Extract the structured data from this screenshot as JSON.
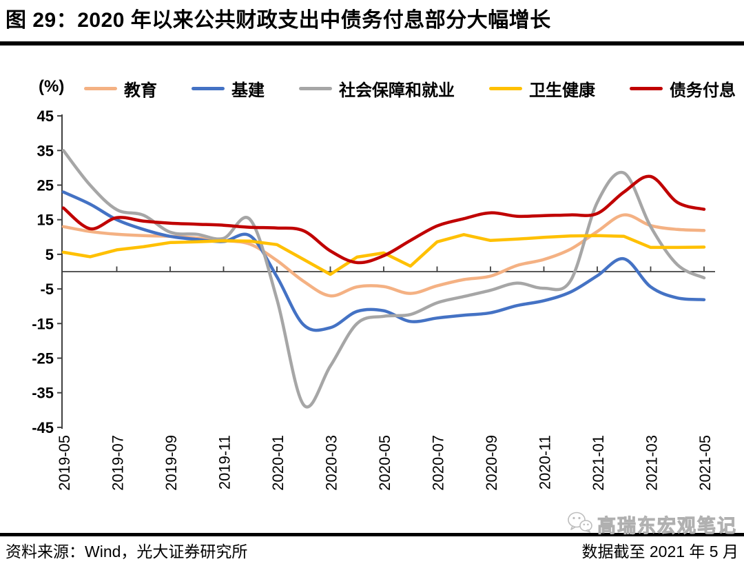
{
  "figure": {
    "title": "图 29：2020 年以来公共财政支出中债务付息部分大幅增长",
    "unit_label": "(%)"
  },
  "footer": {
    "source": "资料来源：Wind，光大证券研究所",
    "cutoff": "数据截至 2021 年 5 月",
    "watermark": "高瑞东宏观笔记"
  },
  "colors": {
    "axis": "#3f3f3f",
    "tick_text": "#000000",
    "title_rule": "#000000",
    "watermark_gray": "#c9c9c9"
  },
  "chart_data": {
    "type": "line",
    "title": "图 29：2020 年以来公共财政支出中债务付息部分大幅增长",
    "ylabel": "(%)",
    "ylim": [
      -45,
      45
    ],
    "ytick_step": 10,
    "yticks": [
      45,
      35,
      25,
      15,
      5,
      -5,
      -15,
      -25,
      -35,
      -45
    ],
    "grid": false,
    "legend_position": "top",
    "x": [
      "2019-05",
      "2019-06",
      "2019-07",
      "2019-08",
      "2019-09",
      "2019-10",
      "2019-11",
      "2019-12",
      "2020-01",
      "2020-02",
      "2020-03",
      "2020-04",
      "2020-05",
      "2020-06",
      "2020-07",
      "2020-08",
      "2020-09",
      "2020-10",
      "2020-11",
      "2020-12",
      "2021-01",
      "2021-02",
      "2021-03",
      "2021-04",
      "2021-05"
    ],
    "x_tick_labels": [
      "2019-05",
      "2019-07",
      "2019-09",
      "2019-11",
      "2020-01",
      "2020-03",
      "2020-05",
      "2020-07",
      "2020-09",
      "2020-11",
      "2021-01",
      "2021-03",
      "2021-05"
    ],
    "series": [
      {
        "name": "教育",
        "color": "#F4B183",
        "smooth": true,
        "values": [
          13.0,
          11.6,
          10.8,
          10.4,
          10.2,
          9.7,
          9.0,
          7.9,
          3.2,
          -2.8,
          -7.0,
          -4.4,
          -4.3,
          -6.3,
          -4.1,
          -2.3,
          -1.3,
          1.8,
          3.5,
          6.5,
          11.6,
          16.4,
          13.3,
          12.2,
          11.9
        ]
      },
      {
        "name": "基建",
        "color": "#4472C4",
        "smooth": true,
        "values": [
          23.0,
          19.5,
          15.0,
          12.2,
          10.2,
          9.3,
          8.7,
          10.3,
          -1.5,
          -15.4,
          -16.2,
          -11.5,
          -11.3,
          -14.4,
          -13.4,
          -12.6,
          -11.9,
          -9.8,
          -8.4,
          -5.9,
          -1.2,
          3.7,
          -4.4,
          -7.6,
          -8.1
        ]
      },
      {
        "name": "社会保障和就业",
        "color": "#A6A6A6",
        "smooth": true,
        "values": [
          35.0,
          25.0,
          17.9,
          16.3,
          11.4,
          10.8,
          9.6,
          15.0,
          -8.0,
          -38.5,
          -27.3,
          -15.0,
          -12.9,
          -12.4,
          -9.0,
          -7.2,
          -5.4,
          -3.3,
          -4.8,
          -2.6,
          20.0,
          28.5,
          13.0,
          2.0,
          -1.8
        ]
      },
      {
        "name": "卫生健康",
        "color": "#FFC000",
        "smooth": false,
        "values": [
          5.6,
          4.3,
          6.3,
          7.2,
          8.4,
          8.6,
          8.9,
          8.8,
          7.8,
          3.5,
          -0.8,
          4.2,
          5.4,
          1.6,
          8.6,
          10.7,
          9.0,
          9.4,
          9.9,
          10.3,
          10.4,
          10.2,
          7.0,
          7.0,
          7.1
        ]
      },
      {
        "name": "债务付息",
        "color": "#C00000",
        "smooth": true,
        "values": [
          18.4,
          12.4,
          15.6,
          14.6,
          14.0,
          13.7,
          13.4,
          12.8,
          12.6,
          11.8,
          6.0,
          2.6,
          4.6,
          9.0,
          13.2,
          15.3,
          17.0,
          16.0,
          16.2,
          16.4,
          16.8,
          23.0,
          27.5,
          20.0,
          18.0
        ]
      }
    ]
  }
}
